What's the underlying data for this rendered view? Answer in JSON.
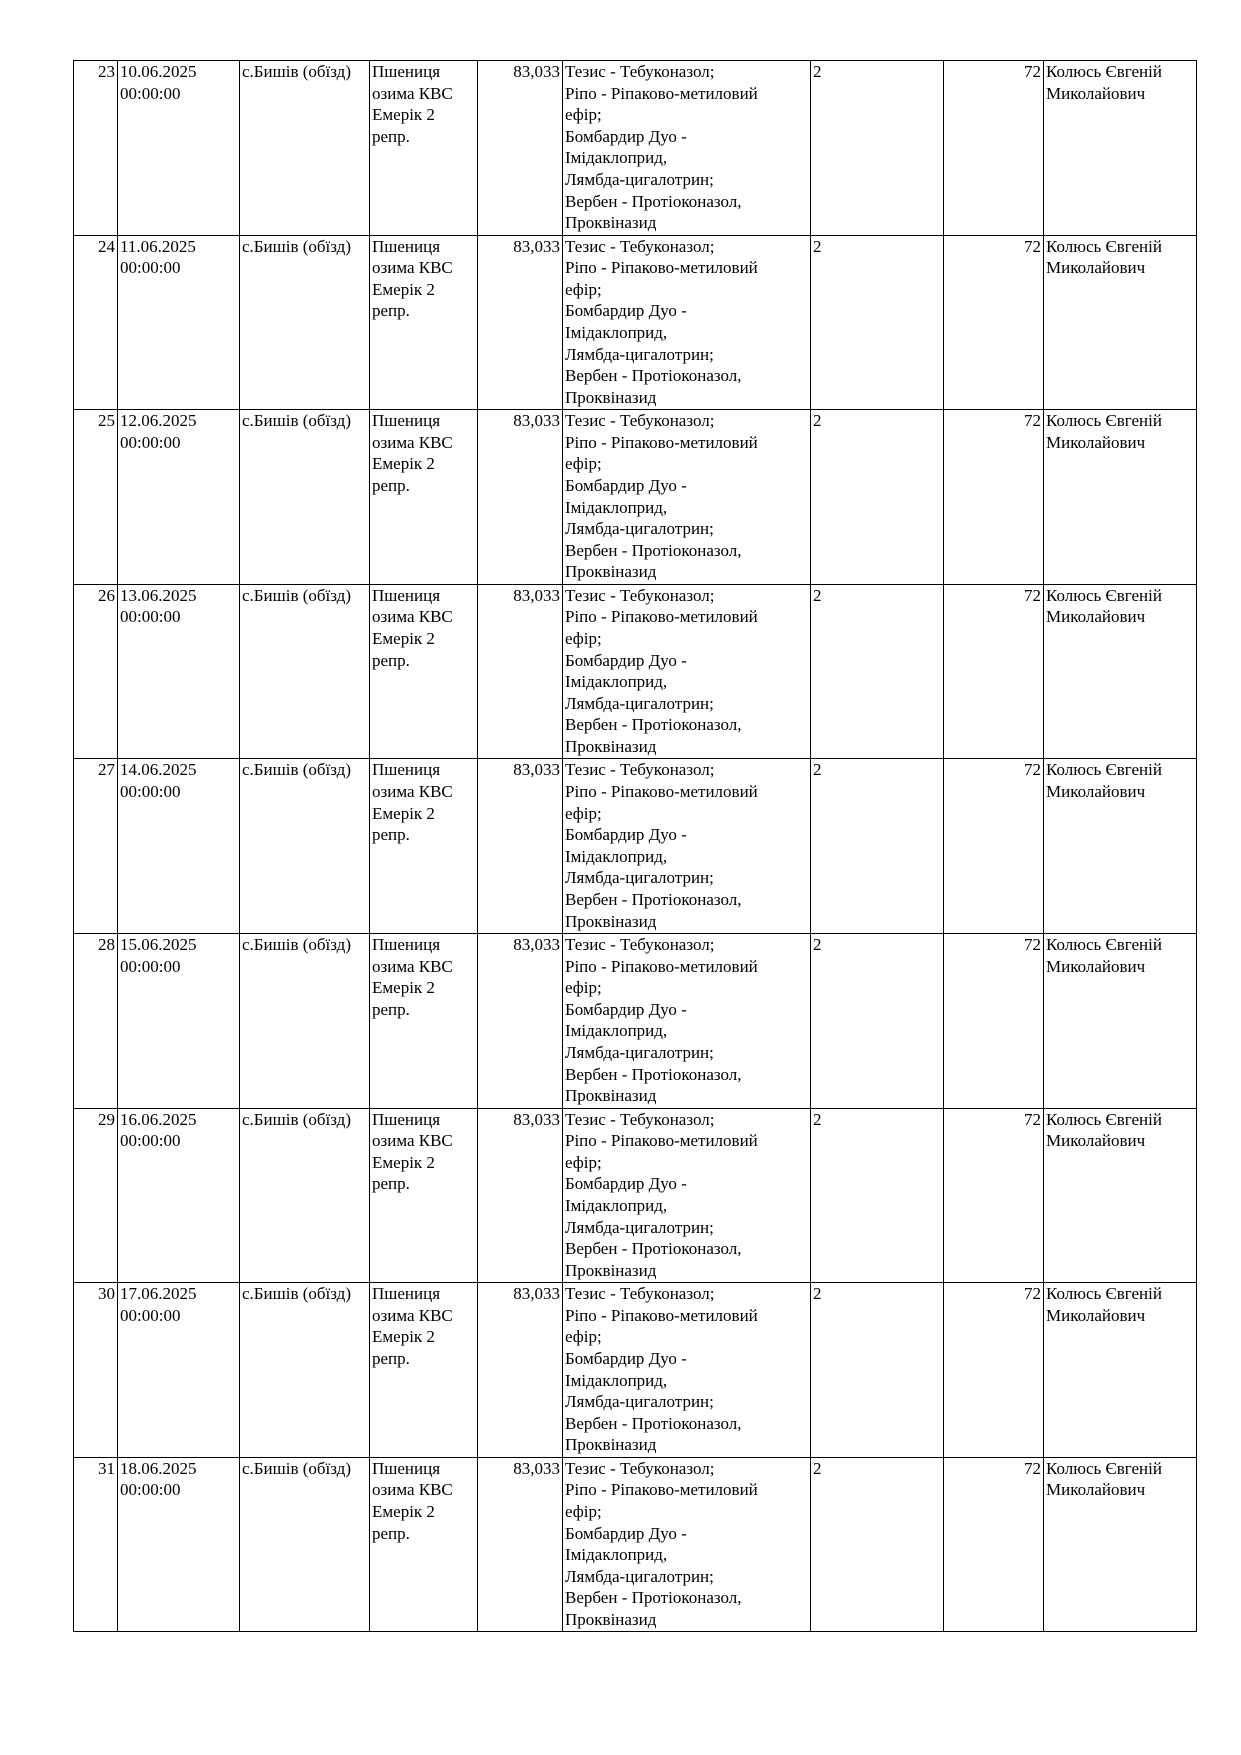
{
  "table": {
    "rows": [
      {
        "no": "23",
        "date": "10.06.2025\n00:00:00",
        "location": "с.Бишів (обїзд)",
        "crop": "Пшениця\nозима КВС\nЕмерік 2\nрепр.",
        "area": "83,033",
        "products": "Тезис - Тебуконазол;\nРіпо - Ріпаково-метиловий\nефір;\nБомбардир Дуо -\nІмідаклоприд,\nЛямбда-цигалотрин;\nВербен - Протіоконазол,\nПроквіназид",
        "class": "2",
        "hours": "72",
        "person": "Колюсь Євгеній\nМиколайович"
      },
      {
        "no": "24",
        "date": "11.06.2025\n00:00:00",
        "location": "с.Бишів (обїзд)",
        "crop": "Пшениця\nозима КВС\nЕмерік 2\nрепр.",
        "area": "83,033",
        "products": "Тезис - Тебуконазол;\nРіпо - Ріпаково-метиловий\nефір;\nБомбардир Дуо -\nІмідаклоприд,\nЛямбда-цигалотрин;\nВербен - Протіоконазол,\nПроквіназид",
        "class": "2",
        "hours": "72",
        "person": "Колюсь Євгеній\nМиколайович"
      },
      {
        "no": "25",
        "date": "12.06.2025\n00:00:00",
        "location": "с.Бишів (обїзд)",
        "crop": "Пшениця\nозима КВС\nЕмерік 2\nрепр.",
        "area": "83,033",
        "products": "Тезис - Тебуконазол;\nРіпо - Ріпаково-метиловий\nефір;\nБомбардир Дуо -\nІмідаклоприд,\nЛямбда-цигалотрин;\nВербен - Протіоконазол,\nПроквіназид",
        "class": "2",
        "hours": "72",
        "person": "Колюсь Євгеній\nМиколайович"
      },
      {
        "no": "26",
        "date": "13.06.2025\n00:00:00",
        "location": "с.Бишів (обїзд)",
        "crop": "Пшениця\nозима КВС\nЕмерік 2\nрепр.",
        "area": "83,033",
        "products": "Тезис - Тебуконазол;\nРіпо - Ріпаково-метиловий\nефір;\nБомбардир Дуо -\nІмідаклоприд,\nЛямбда-цигалотрин;\nВербен - Протіоконазол,\nПроквіназид",
        "class": "2",
        "hours": "72",
        "person": "Колюсь Євгеній\nМиколайович"
      },
      {
        "no": "27",
        "date": "14.06.2025\n00:00:00",
        "location": "с.Бишів (обїзд)",
        "crop": "Пшениця\nозима КВС\nЕмерік 2\nрепр.",
        "area": "83,033",
        "products": "Тезис - Тебуконазол;\nРіпо - Ріпаково-метиловий\nефір;\nБомбардир Дуо -\nІмідаклоприд,\nЛямбда-цигалотрин;\nВербен - Протіоконазол,\nПроквіназид",
        "class": "2",
        "hours": "72",
        "person": "Колюсь Євгеній\nМиколайович"
      },
      {
        "no": "28",
        "date": "15.06.2025\n00:00:00",
        "location": "с.Бишів (обїзд)",
        "crop": "Пшениця\nозима КВС\nЕмерік 2\nрепр.",
        "area": "83,033",
        "products": "Тезис - Тебуконазол;\nРіпо - Ріпаково-метиловий\nефір;\nБомбардир Дуо -\nІмідаклоприд,\nЛямбда-цигалотрин;\nВербен - Протіоконазол,\nПроквіназид",
        "class": "2",
        "hours": "72",
        "person": "Колюсь Євгеній\nМиколайович"
      },
      {
        "no": "29",
        "date": "16.06.2025\n00:00:00",
        "location": "с.Бишів (обїзд)",
        "crop": "Пшениця\nозима КВС\nЕмерік 2\nрепр.",
        "area": "83,033",
        "products": "Тезис - Тебуконазол;\nРіпо - Ріпаково-метиловий\nефір;\nБомбардир Дуо -\nІмідаклоприд,\nЛямбда-цигалотрин;\nВербен - Протіоконазол,\nПроквіназид",
        "class": "2",
        "hours": "72",
        "person": "Колюсь Євгеній\nМиколайович"
      },
      {
        "no": "30",
        "date": "17.06.2025\n00:00:00",
        "location": "с.Бишів (обїзд)",
        "crop": "Пшениця\nозима КВС\nЕмерік 2\nрепр.",
        "area": "83,033",
        "products": "Тезис - Тебуконазол;\nРіпо - Ріпаково-метиловий\nефір;\nБомбардир Дуо -\nІмідаклоприд,\nЛямбда-цигалотрин;\nВербен - Протіоконазол,\nПроквіназид",
        "class": "2",
        "hours": "72",
        "person": "Колюсь Євгеній\nМиколайович"
      },
      {
        "no": "31",
        "date": "18.06.2025\n00:00:00",
        "location": "с.Бишів (обїзд)",
        "crop": "Пшениця\nозима КВС\nЕмерік 2\nрепр.",
        "area": "83,033",
        "products": "Тезис - Тебуконазол;\nРіпо - Ріпаково-метиловий\nефір;\nБомбардир Дуо -\nІмідаклоприд,\nЛямбда-цигалотрин;\nВербен - Протіоконазол,\nПроквіназид",
        "class": "2",
        "hours": "72",
        "person": "Колюсь Євгеній\nМиколайович"
      }
    ]
  }
}
